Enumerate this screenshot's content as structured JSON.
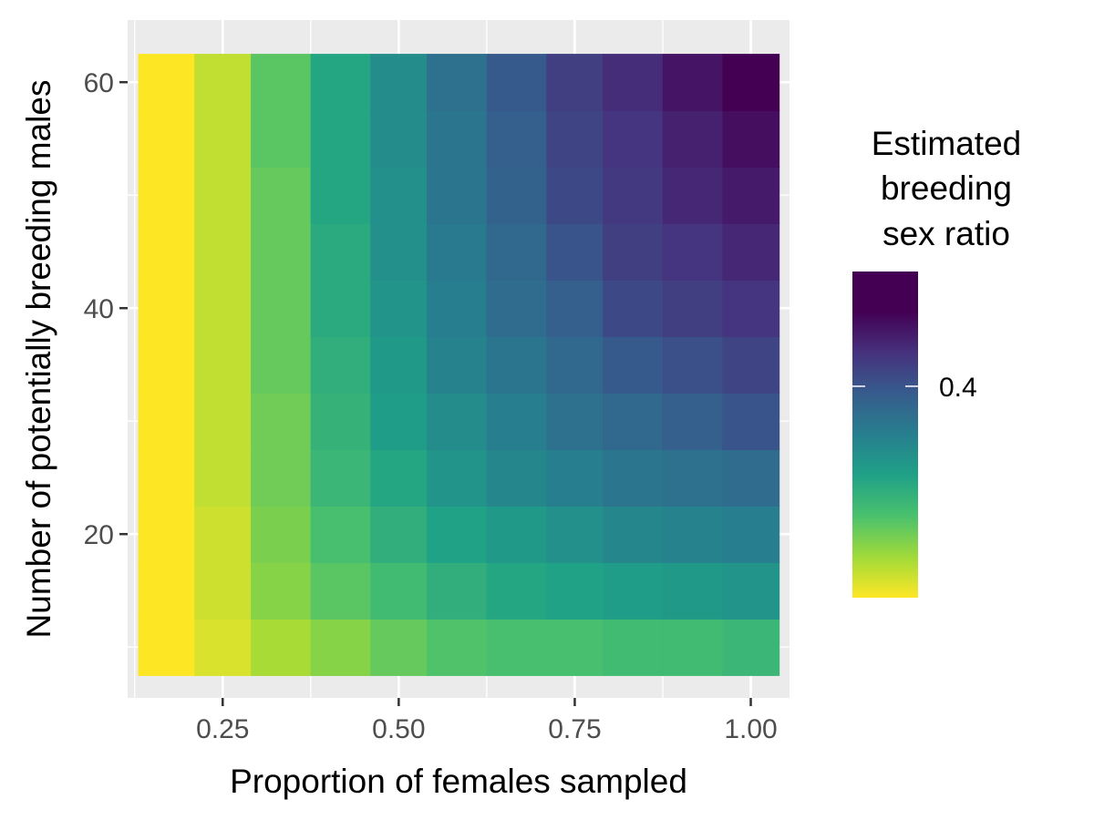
{
  "chart_data": {
    "type": "heatmap",
    "xlabel": "Proportion of females sampled",
    "ylabel": "Number of potentially breeding males",
    "x": [
      0.17,
      0.25,
      0.33,
      0.42,
      0.5,
      0.58,
      0.67,
      0.75,
      0.83,
      0.92,
      1.0
    ],
    "y": [
      10,
      15,
      20,
      25,
      30,
      35,
      40,
      45,
      50,
      55,
      60
    ],
    "x_ticks": [
      {
        "value": 0.25,
        "label": "0.25"
      },
      {
        "value": 0.5,
        "label": "0.50"
      },
      {
        "value": 0.75,
        "label": "0.75"
      },
      {
        "value": 1.0,
        "label": "1.00"
      }
    ],
    "y_ticks": [
      {
        "value": 20,
        "label": "20"
      },
      {
        "value": 40,
        "label": "40"
      },
      {
        "value": 60,
        "label": "60"
      }
    ],
    "xlim": [
      0.115,
      1.055
    ],
    "ylim": [
      5.5,
      65.5
    ],
    "values": [
      [
        0.05,
        0.08,
        0.12,
        0.15,
        0.18,
        0.2,
        0.21,
        0.21,
        0.22,
        0.22,
        0.23
      ],
      [
        0.05,
        0.09,
        0.15,
        0.19,
        0.22,
        0.25,
        0.27,
        0.28,
        0.29,
        0.3,
        0.31
      ],
      [
        0.05,
        0.09,
        0.16,
        0.21,
        0.25,
        0.28,
        0.3,
        0.32,
        0.34,
        0.35,
        0.36
      ],
      [
        0.05,
        0.1,
        0.17,
        0.23,
        0.27,
        0.31,
        0.34,
        0.36,
        0.38,
        0.39,
        0.4
      ],
      [
        0.05,
        0.1,
        0.17,
        0.24,
        0.29,
        0.33,
        0.36,
        0.39,
        0.41,
        0.43,
        0.45
      ],
      [
        0.05,
        0.1,
        0.18,
        0.25,
        0.3,
        0.35,
        0.38,
        0.41,
        0.44,
        0.46,
        0.48
      ],
      [
        0.05,
        0.1,
        0.18,
        0.26,
        0.31,
        0.36,
        0.4,
        0.43,
        0.47,
        0.49,
        0.51
      ],
      [
        0.05,
        0.1,
        0.18,
        0.26,
        0.32,
        0.37,
        0.41,
        0.45,
        0.49,
        0.51,
        0.53
      ],
      [
        0.05,
        0.1,
        0.18,
        0.27,
        0.32,
        0.38,
        0.42,
        0.47,
        0.5,
        0.53,
        0.55
      ],
      [
        0.05,
        0.1,
        0.19,
        0.27,
        0.33,
        0.38,
        0.43,
        0.48,
        0.51,
        0.54,
        0.57
      ],
      [
        0.05,
        0.1,
        0.19,
        0.27,
        0.33,
        0.39,
        0.44,
        0.49,
        0.52,
        0.56,
        0.59
      ]
    ],
    "colorscale": "viridis",
    "colorscale_reversed": true,
    "color_range": [
      0.05,
      0.59
    ],
    "legend": {
      "title": [
        "Estimated",
        "breeding",
        "sex ratio"
      ],
      "ticks": [
        {
          "value": 0.4,
          "label": "0.4"
        }
      ],
      "placement": "right"
    },
    "panel_background": "#ebebeb",
    "grid": true,
    "grid_color": "#ffffff"
  }
}
